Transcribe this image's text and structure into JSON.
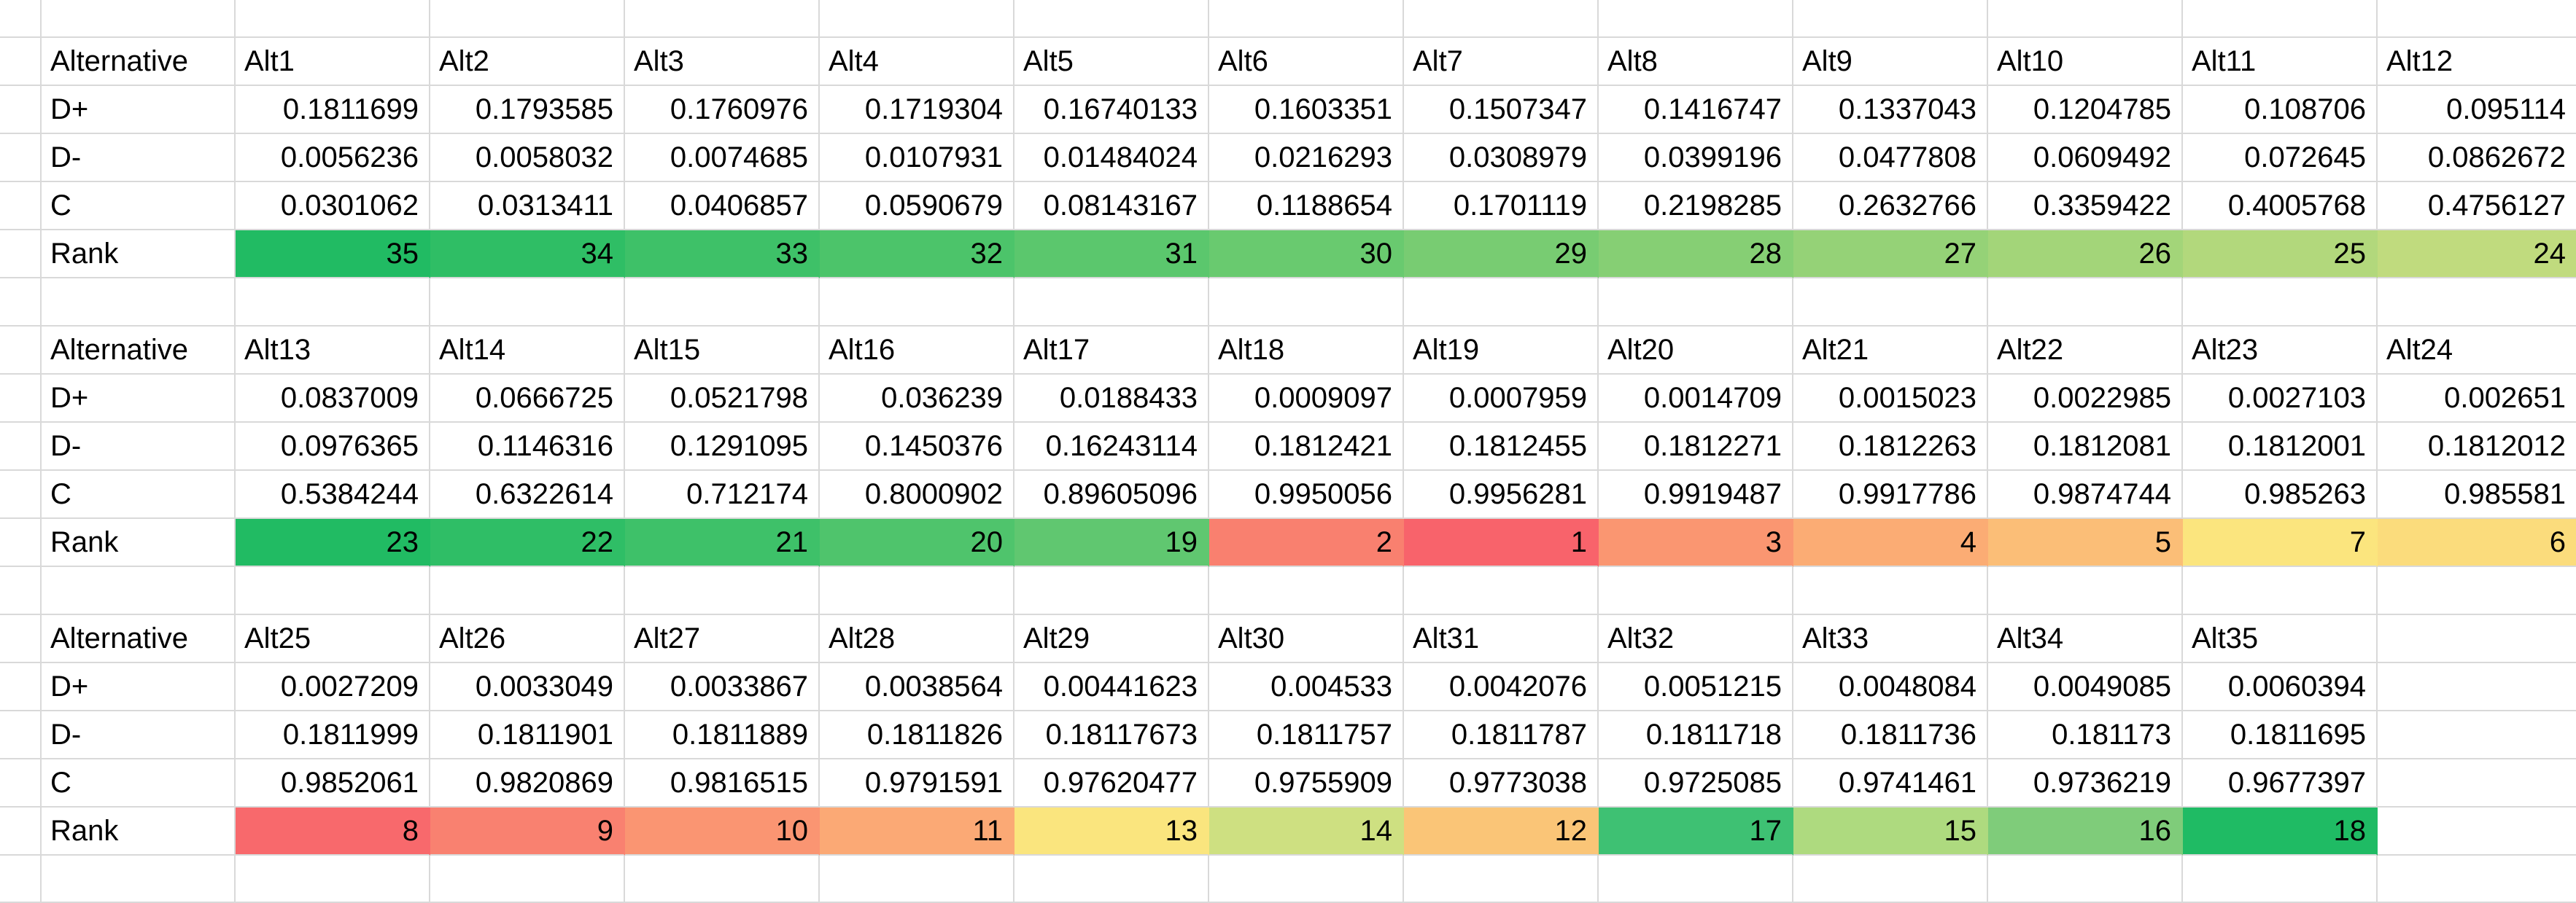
{
  "sheet": {
    "corner_label": "Alternative",
    "row_labels": {
      "dplus": "D+",
      "dminus": "D-",
      "c": "C",
      "rank": "Rank"
    }
  },
  "colors": {
    "gridline": "#d9d9d9",
    "background": "#ffffff",
    "text": "#000000",
    "scale_green_anchor": "#21BB63",
    "scale_yellow_anchor": "#FBE57E",
    "scale_red_anchor": "#F8636B"
  },
  "blocks": [
    {
      "headers": [
        "Alt1",
        "Alt2",
        "Alt3",
        "Alt4",
        "Alt5",
        "Alt6",
        "Alt7",
        "Alt8",
        "Alt9",
        "Alt10",
        "Alt11",
        "Alt12"
      ],
      "dplus": [
        "0.1811699",
        "0.1793585",
        "0.1760976",
        "0.1719304",
        "0.16740133",
        "0.1603351",
        "0.1507347",
        "0.1416747",
        "0.1337043",
        "0.1204785",
        "0.108706",
        "0.095114"
      ],
      "dminus": [
        "0.0056236",
        "0.0058032",
        "0.0074685",
        "0.0107931",
        "0.01484024",
        "0.0216293",
        "0.0308979",
        "0.0399196",
        "0.0477808",
        "0.0609492",
        "0.072645",
        "0.0862672"
      ],
      "c": [
        "0.0301062",
        "0.0313411",
        "0.0406857",
        "0.0590679",
        "0.08143167",
        "0.1188654",
        "0.1701119",
        "0.2198285",
        "0.2632766",
        "0.3359422",
        "0.4005768",
        "0.4756127"
      ],
      "rank": [
        "35",
        "34",
        "33",
        "32",
        "31",
        "30",
        "29",
        "28",
        "27",
        "26",
        "25",
        "24"
      ],
      "rank_colors": [
        "#21BB63",
        "#2FBE65",
        "#3EC168",
        "#4CC46A",
        "#5BC76D",
        "#69CA6F",
        "#78CC72",
        "#86CF74",
        "#95D277",
        "#A3D579",
        "#B2D87C",
        "#C0DB7E"
      ]
    },
    {
      "headers": [
        "Alt13",
        "Alt14",
        "Alt15",
        "Alt16",
        "Alt17",
        "Alt18",
        "Alt19",
        "Alt20",
        "Alt21",
        "Alt22",
        "Alt23",
        "Alt24"
      ],
      "dplus": [
        "0.0837009",
        "0.0666725",
        "0.0521798",
        "0.036239",
        "0.0188433",
        "0.0009097",
        "0.0007959",
        "0.0014709",
        "0.0015023",
        "0.0022985",
        "0.0027103",
        "0.002651"
      ],
      "dminus": [
        "0.0976365",
        "0.1146316",
        "0.1291095",
        "0.1450376",
        "0.16243114",
        "0.1812421",
        "0.1812455",
        "0.1812271",
        "0.1812263",
        "0.1812081",
        "0.1812001",
        "0.1812012"
      ],
      "c": [
        "0.5384244",
        "0.6322614",
        "0.712174",
        "0.8000902",
        "0.89605096",
        "0.9950056",
        "0.9956281",
        "0.9919487",
        "0.9917786",
        "0.9874744",
        "0.985263",
        "0.985581"
      ],
      "rank": [
        "23",
        "22",
        "21",
        "20",
        "19",
        "2",
        "1",
        "3",
        "4",
        "5",
        "7",
        "6"
      ],
      "rank_colors": [
        "#21BB63",
        "#2FBE66",
        "#3EC169",
        "#4FC46C",
        "#60C770",
        "#F9806F",
        "#F8636B",
        "#FA9671",
        "#FBAC74",
        "#FBBE77",
        "#FBE57E",
        "#FBDC7C"
      ]
    },
    {
      "headers": [
        "Alt25",
        "Alt26",
        "Alt27",
        "Alt28",
        "Alt29",
        "Alt30",
        "Alt31",
        "Alt32",
        "Alt33",
        "Alt34",
        "Alt35"
      ],
      "dplus": [
        "0.0027209",
        "0.0033049",
        "0.0033867",
        "0.0038564",
        "0.00441623",
        "0.004533",
        "0.0042076",
        "0.0051215",
        "0.0048084",
        "0.0049085",
        "0.0060394"
      ],
      "dminus": [
        "0.1811999",
        "0.1811901",
        "0.1811889",
        "0.1811826",
        "0.18117673",
        "0.1811757",
        "0.1811787",
        "0.1811718",
        "0.1811736",
        "0.181173",
        "0.1811695"
      ],
      "c": [
        "0.9852061",
        "0.9820869",
        "0.9816515",
        "0.9791591",
        "0.97620477",
        "0.9755909",
        "0.9773038",
        "0.9725085",
        "0.9741461",
        "0.9736219",
        "0.9677397"
      ],
      "rank": [
        "8",
        "9",
        "10",
        "11",
        "13",
        "14",
        "12",
        "17",
        "15",
        "16",
        "18"
      ],
      "rank_colors": [
        "#F8696C",
        "#F98170",
        "#FA9572",
        "#FBA975",
        "#FAE57E",
        "#CEE081",
        "#FAC577",
        "#3EC173",
        "#AEDA7F",
        "#7FCC7A",
        "#1FBB64"
      ]
    }
  ]
}
